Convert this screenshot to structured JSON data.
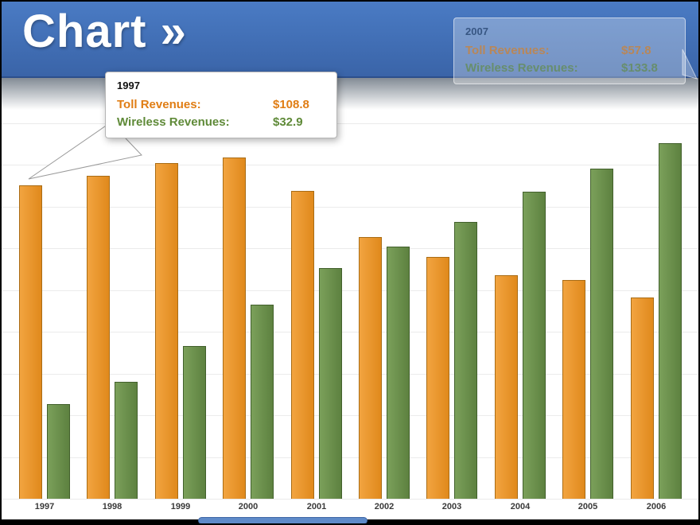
{
  "header": {
    "title": "Chart »"
  },
  "tooltips": {
    "t1997": {
      "year": "1997",
      "toll_label": "Toll Revenues:",
      "toll_value": "$108.8",
      "wireless_label": "Wireless Revenues:",
      "wireless_value": "$32.9"
    },
    "t2007": {
      "year": "2007",
      "toll_label": "Toll Revenues:",
      "toll_value": "$57.8",
      "wireless_label": "Wireless Revenues:",
      "wireless_value": "$133.8"
    }
  },
  "colors": {
    "header_blue": "#3e6db7",
    "toll_orange": "#e8901f",
    "wireless_green": "#6b8f4e",
    "scroll_thumb": "#5e8ac9"
  },
  "chart_data": {
    "type": "bar",
    "title": "Chart »",
    "categories": [
      "1997",
      "1998",
      "1999",
      "2000",
      "2001",
      "2002",
      "2003",
      "2004",
      "2005",
      "2006"
    ],
    "series": [
      {
        "name": "Toll Revenues",
        "color": "#e8901f",
        "values": [
          108.8,
          112,
          116.5,
          118.5,
          107,
          91,
          84,
          77.5,
          76,
          70
        ]
      },
      {
        "name": "Wireless Revenues",
        "color": "#6b8f4e",
        "values": [
          32.9,
          40.5,
          53,
          67.5,
          80,
          87.5,
          96,
          106.5,
          114.5,
          123.5
        ]
      }
    ],
    "xlabel": "",
    "ylabel": "",
    "ylim": [
      0,
      145
    ],
    "grid": true,
    "legend": "tooltips-only"
  }
}
